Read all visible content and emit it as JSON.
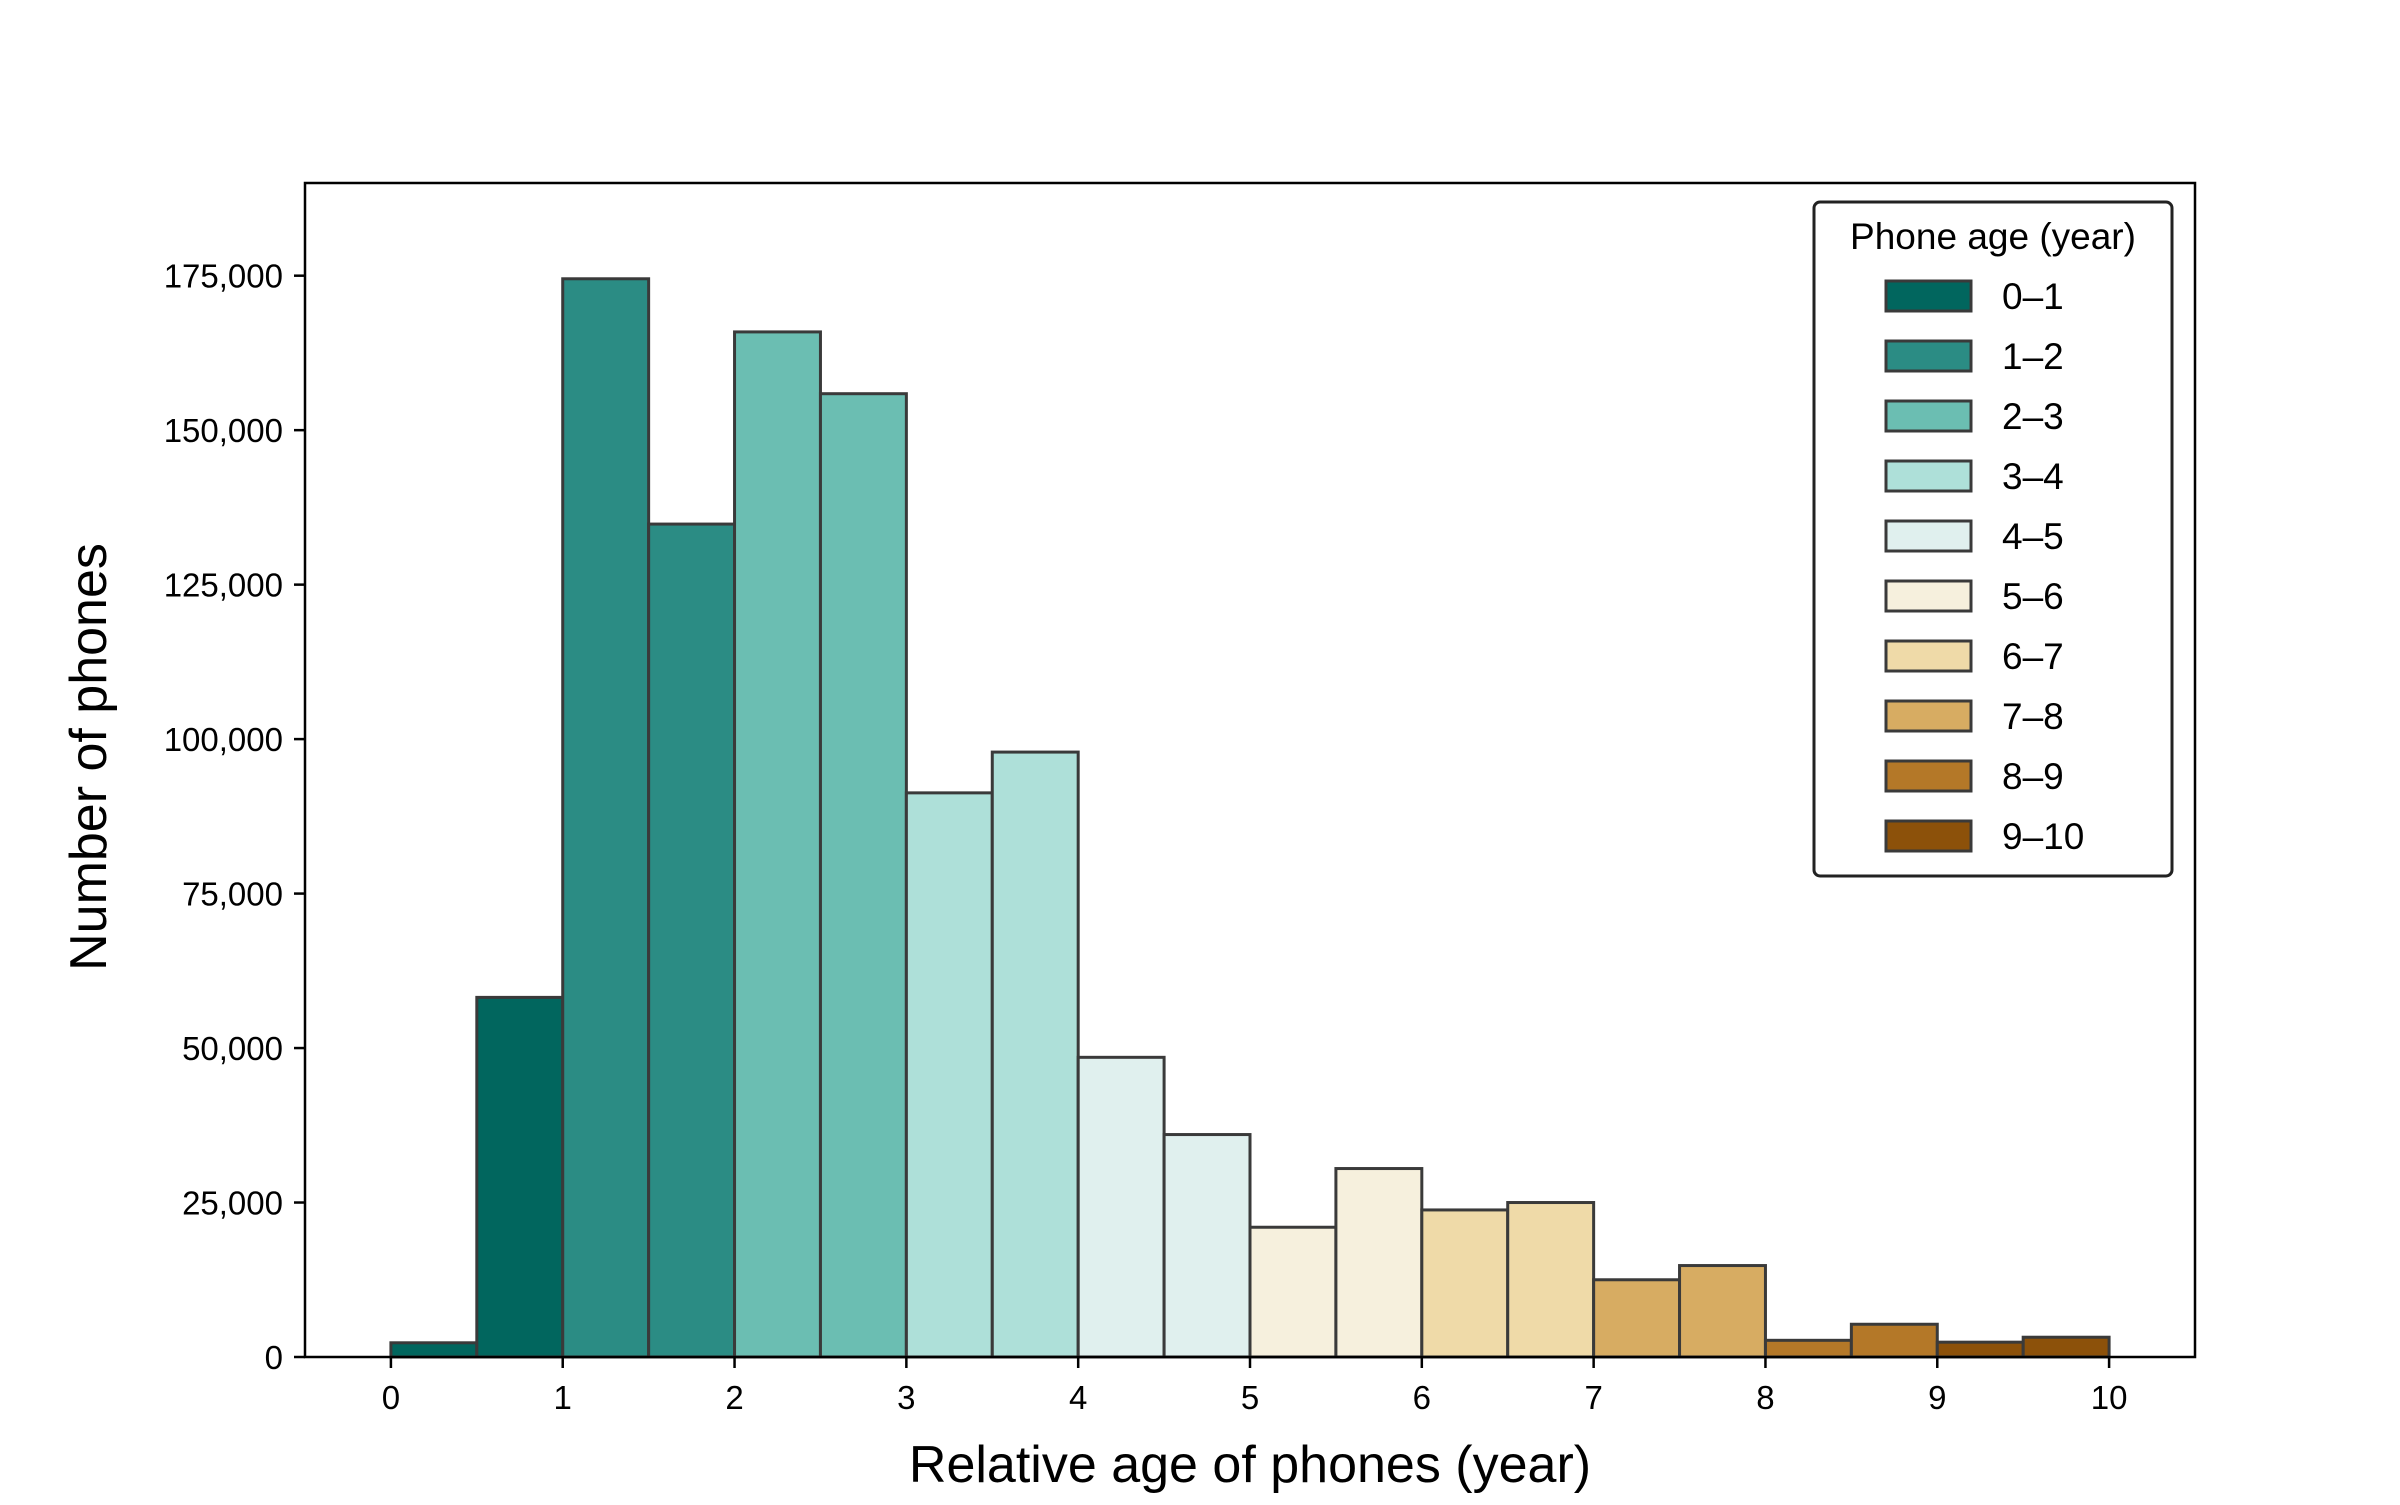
{
  "chart_data": {
    "type": "bar",
    "title": "",
    "xlabel": "Relative age of phones (year)",
    "ylabel": "Number of phones",
    "bin_width": 0.5,
    "bin_starts": [
      0,
      0.5,
      1,
      1.5,
      2,
      2.5,
      3,
      3.5,
      4,
      4.5,
      5,
      5.5,
      6,
      6.5,
      7,
      7.5,
      8,
      8.5,
      9,
      9.5
    ],
    "values": [
      2300,
      58200,
      174500,
      134800,
      165900,
      155900,
      91300,
      97900,
      48500,
      36000,
      21000,
      30500,
      23800,
      25000,
      12500,
      14800,
      2700,
      5300,
      2400,
      3200
    ],
    "group_index": [
      0,
      0,
      1,
      1,
      2,
      2,
      3,
      3,
      4,
      4,
      5,
      5,
      6,
      6,
      7,
      7,
      8,
      8,
      9,
      9
    ],
    "xlim": [
      -0.5,
      10.5
    ],
    "ylim": [
      0,
      190000
    ],
    "x_ticks": [
      0,
      1,
      2,
      3,
      4,
      5,
      6,
      7,
      8,
      9,
      10
    ],
    "x_tick_labels": [
      "0",
      "1",
      "2",
      "3",
      "4",
      "5",
      "6",
      "7",
      "8",
      "9",
      "10"
    ],
    "y_ticks": [
      0,
      25000,
      50000,
      75000,
      100000,
      125000,
      150000,
      175000
    ],
    "y_tick_labels": [
      "0",
      "25,000",
      "50,000",
      "75,000",
      "100,000",
      "125,000",
      "150,000",
      "175,000"
    ],
    "grid": false,
    "legend": {
      "title": "Phone age (year)",
      "position": "top-right",
      "entries": [
        {
          "label": "0–1",
          "color": "#01665e"
        },
        {
          "label": "1–2",
          "color": "#2b8c84"
        },
        {
          "label": "2–3",
          "color": "#6bbeb2"
        },
        {
          "label": "3–4",
          "color": "#aee0d9"
        },
        {
          "label": "4–5",
          "color": "#e0f0ee"
        },
        {
          "label": "5–6",
          "color": "#f6f0dd"
        },
        {
          "label": "6–7",
          "color": "#efdaa8"
        },
        {
          "label": "7–8",
          "color": "#d7ac62"
        },
        {
          "label": "8–9",
          "color": "#b47828"
        },
        {
          "label": "9–10",
          "color": "#8c510a"
        }
      ]
    },
    "edge_color": "#3a3a3a"
  }
}
